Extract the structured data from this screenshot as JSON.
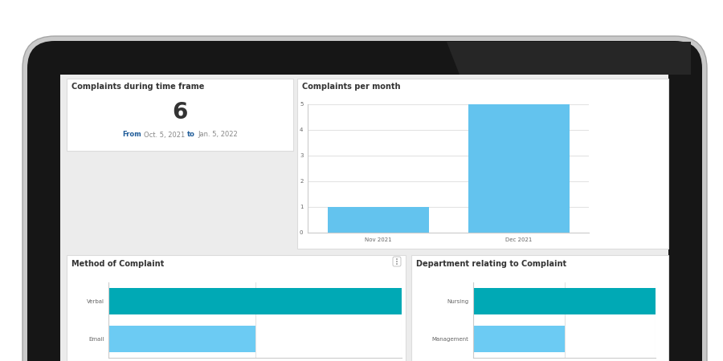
{
  "kpi": {
    "title": "Complaints during time frame",
    "value": 6,
    "from_label": "From",
    "from": "Oct. 5, 2021",
    "to_label": "to",
    "to": "Jan. 5, 2022"
  },
  "chart_data": [
    {
      "type": "bar",
      "title": "Complaints per month",
      "categories": [
        "Nov 2021",
        "Dec 2021"
      ],
      "values": [
        1,
        5
      ],
      "color": "#63c3ee",
      "ylim": [
        0,
        5
      ],
      "yticks": [
        0,
        1,
        2,
        3,
        4,
        5
      ],
      "grid": true
    },
    {
      "type": "bar",
      "orientation": "horizontal",
      "title": "Method of Complaint",
      "categories": [
        "Verbal",
        "Email"
      ],
      "values": [
        2,
        1
      ],
      "colors": [
        "#00a9b5",
        "#6ccbf3"
      ],
      "xlim": [
        0,
        2
      ],
      "xticks": [
        0,
        1,
        2
      ],
      "grid": true,
      "tick_labels": "y"
    },
    {
      "type": "bar",
      "orientation": "horizontal",
      "title": "Department relating to Complaint",
      "categories": [
        "Nursing",
        "Management"
      ],
      "values": [
        2,
        1
      ],
      "colors": [
        "#00a9b5",
        "#6ccbf3"
      ],
      "xlim": [
        0,
        2
      ],
      "xticks": [
        0,
        1,
        2
      ],
      "grid": true,
      "tick_labels": "y"
    }
  ]
}
